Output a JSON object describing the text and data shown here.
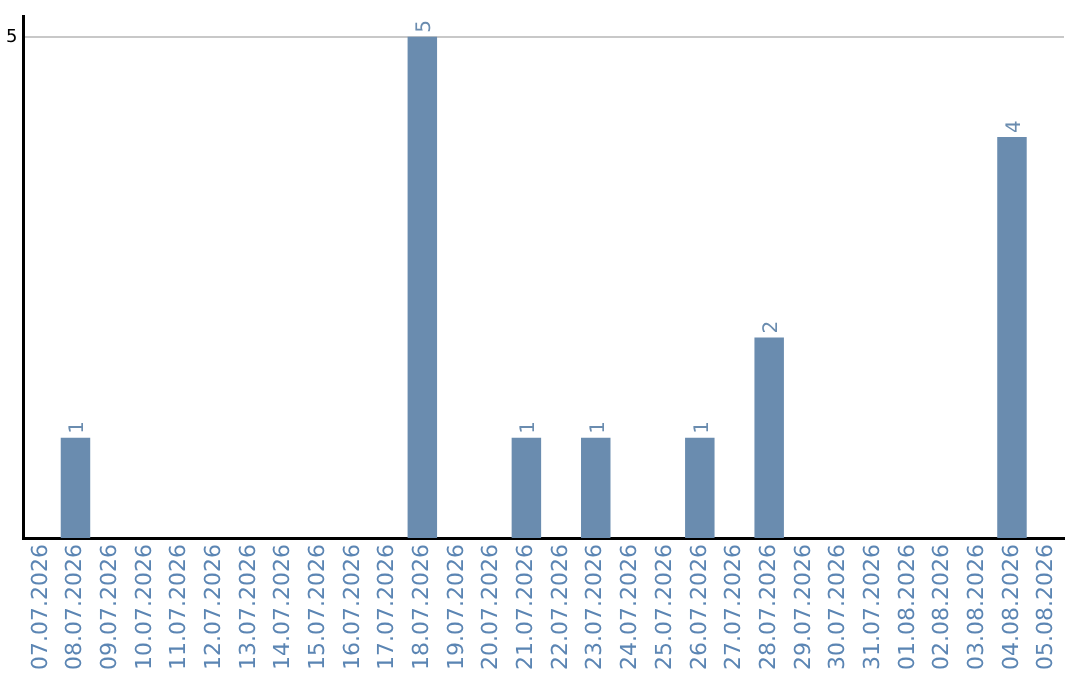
{
  "chart_data": {
    "type": "bar",
    "categories": [
      "07.07.2026",
      "08.07.2026",
      "09.07.2026",
      "10.07.2026",
      "11.07.2026",
      "12.07.2026",
      "13.07.2026",
      "14.07.2026",
      "15.07.2026",
      "16.07.2026",
      "17.07.2026",
      "18.07.2026",
      "19.07.2026",
      "20.07.2026",
      "21.07.2026",
      "22.07.2026",
      "23.07.2026",
      "24.07.2026",
      "25.07.2026",
      "26.07.2026",
      "27.07.2026",
      "28.07.2026",
      "29.07.2026",
      "30.07.2026",
      "31.07.2026",
      "01.08.2026",
      "02.08.2026",
      "03.08.2026",
      "04.08.2026",
      "05.08.2026"
    ],
    "values": [
      null,
      1,
      null,
      null,
      null,
      null,
      null,
      null,
      null,
      null,
      null,
      5,
      null,
      null,
      1,
      null,
      1,
      null,
      null,
      1,
      null,
      2,
      null,
      null,
      null,
      null,
      null,
      null,
      4,
      null
    ],
    "value_labels": [
      null,
      "1",
      null,
      null,
      null,
      null,
      null,
      null,
      null,
      null,
      null,
      "5",
      null,
      null,
      "1",
      null,
      "1",
      null,
      null,
      "1",
      null,
      "2",
      null,
      null,
      null,
      null,
      null,
      null,
      "4",
      null
    ],
    "color": "#6a8caf",
    "ylim": [
      0,
      5.2
    ],
    "yticks": [
      5
    ],
    "grid": "y",
    "legend": false
  }
}
